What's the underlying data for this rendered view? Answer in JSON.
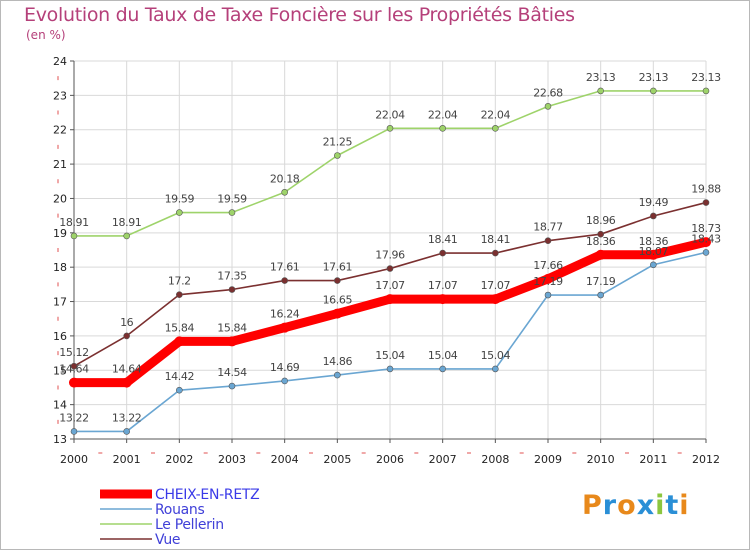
{
  "title": "Evolution du Taux de Taxe Foncière sur les Propriétés Bâties",
  "unit": "(en %)",
  "logo": {
    "text": "Proxiti",
    "colors": [
      "#e8891b",
      "#2a8fd6",
      "#e8891b",
      "#2a8fd6",
      "#8cc63f",
      "#2a8fd6",
      "#e8891b"
    ]
  },
  "chart_data": {
    "type": "line",
    "x": [
      "2000",
      "2001",
      "2002",
      "2003",
      "2004",
      "2005",
      "2006",
      "2007",
      "2008",
      "2009",
      "2010",
      "2011",
      "2012"
    ],
    "ylim": [
      13,
      24
    ],
    "yticks": [
      "13",
      "14",
      "15",
      "16",
      "17",
      "18",
      "19",
      "20",
      "21",
      "22",
      "23",
      "24"
    ],
    "grid": true,
    "legend": "bottom-left",
    "series": [
      {
        "name": "CHEIX-EN-RETZ",
        "color": "#ff0000",
        "values": [
          14.64,
          14.64,
          15.84,
          15.84,
          16.24,
          16.65,
          17.07,
          17.07,
          17.07,
          17.66,
          18.36,
          18.36,
          18.73
        ],
        "labels": [
          "14.64",
          "14.64",
          "15.84",
          "15.84",
          "16.24",
          "16.65",
          "17.07",
          "17.07",
          "17.07",
          "17.66",
          "18.36",
          "18.36",
          "18.73"
        ]
      },
      {
        "name": "Rouans",
        "color": "#6aa6d2",
        "values": [
          13.22,
          13.22,
          14.42,
          14.54,
          14.69,
          14.86,
          15.04,
          15.04,
          15.04,
          17.19,
          17.19,
          18.07,
          18.43
        ],
        "labels": [
          "13.22",
          "13.22",
          "14.42",
          "14.54",
          "14.69",
          "14.86",
          "15.04",
          "15.04",
          "15.04",
          "17.19",
          "17.19",
          "18.07",
          "18.43"
        ]
      },
      {
        "name": "Le Pellerin",
        "color": "#9ed36a",
        "values": [
          18.91,
          18.91,
          19.59,
          19.59,
          20.18,
          21.25,
          22.04,
          22.04,
          22.04,
          22.68,
          23.13,
          23.13,
          23.13
        ],
        "labels": [
          "18.91",
          "18.91",
          "19.59",
          "19.59",
          "20.18",
          "21.25",
          "22.04",
          "22.04",
          "22.04",
          "22.68",
          "23.13",
          "23.13",
          "23.13"
        ]
      },
      {
        "name": "Vue",
        "color": "#7b3030",
        "values": [
          15.12,
          16,
          17.2,
          17.35,
          17.61,
          17.61,
          17.96,
          18.41,
          18.41,
          18.77,
          18.96,
          19.49,
          19.88
        ],
        "labels": [
          "15.12",
          "16",
          "17.2",
          "17.35",
          "17.61",
          "17.61",
          "17.96",
          "18.41",
          "18.41",
          "18.77",
          "18.96",
          "19.49",
          "19.88"
        ]
      }
    ]
  }
}
